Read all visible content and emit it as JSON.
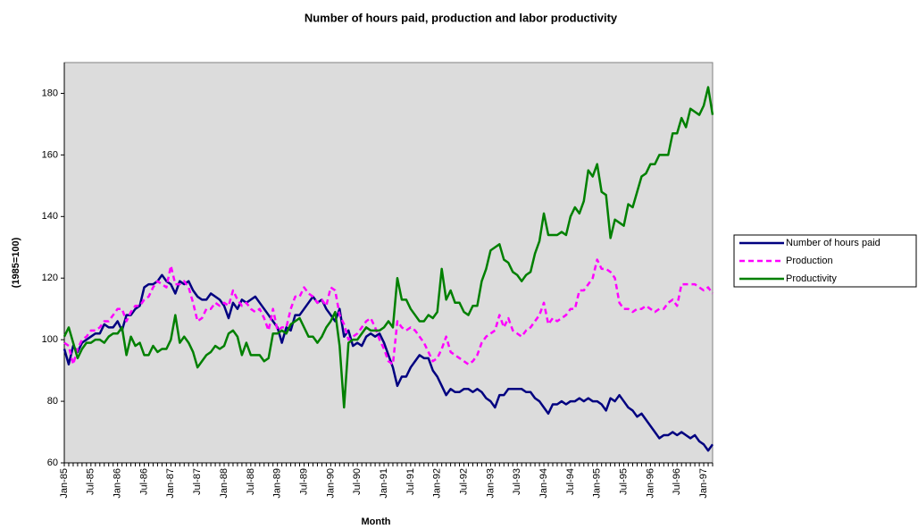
{
  "chart_data": {
    "type": "line",
    "title": "Number of hours paid, production and labor productivity",
    "x_label": "Month",
    "y_label": "(1985=100)",
    "categories": [
      "Jan-85",
      null,
      null,
      null,
      null,
      null,
      "Jul-85",
      null,
      null,
      null,
      null,
      null,
      "Jan-86",
      null,
      null,
      null,
      null,
      null,
      "Jul-86",
      null,
      null,
      null,
      null,
      null,
      "Jan-87",
      null,
      null,
      null,
      null,
      null,
      "Jul-87",
      null,
      null,
      null,
      null,
      null,
      "Jan-88",
      null,
      null,
      null,
      null,
      null,
      "Jul-88",
      null,
      null,
      null,
      null,
      null,
      "Jan-89",
      null,
      null,
      null,
      null,
      null,
      "Jul-89",
      null,
      null,
      null,
      null,
      null,
      "Jan-90",
      null,
      null,
      null,
      null,
      null,
      "Jul-90",
      null,
      null,
      null,
      null,
      null,
      "Jan-91",
      null,
      null,
      null,
      null,
      null,
      "Jul-91",
      null,
      null,
      null,
      null,
      null,
      "Jan-92",
      null,
      null,
      null,
      null,
      null,
      "Jul-92",
      null,
      null,
      null,
      null,
      null,
      "Jan-93",
      null,
      null,
      null,
      null,
      null,
      "Jul-93",
      null,
      null,
      null,
      null,
      null,
      "Jan-94",
      null,
      null,
      null,
      null,
      null,
      "Jul-94",
      null,
      null,
      null,
      null,
      null,
      "Jan-95",
      null,
      null,
      null,
      null,
      null,
      "Jul-95",
      null,
      null,
      null,
      null,
      null,
      "Jan-96",
      null,
      null,
      null,
      null,
      null,
      "Jul-96",
      null,
      null,
      null,
      null,
      null,
      "Jan-97",
      null,
      null
    ],
    "series": [
      {
        "name": "Number of hours paid",
        "color": "#000080",
        "dashed": false,
        "values": [
          97,
          92,
          98,
          96,
          99,
          100,
          101,
          102,
          102,
          105,
          104,
          104,
          106,
          103,
          108,
          108,
          110,
          111,
          117,
          118,
          118,
          119,
          121,
          119,
          118,
          115,
          119,
          118,
          119,
          116,
          114,
          113,
          113,
          115,
          114,
          113,
          111,
          107,
          112,
          110,
          113,
          112,
          113,
          114,
          112,
          110,
          108,
          106,
          104,
          99,
          104,
          103,
          108,
          108,
          110,
          112,
          114,
          112,
          113,
          110,
          108,
          106,
          110,
          101,
          103,
          98,
          99,
          98,
          101,
          102,
          101,
          102,
          99,
          95,
          91,
          85,
          88,
          88,
          91,
          93,
          95,
          94,
          94,
          90,
          88,
          85,
          82,
          84,
          83,
          83,
          84,
          84,
          83,
          84,
          83,
          81,
          80,
          78,
          82,
          82,
          84,
          84,
          84,
          84,
          83,
          83,
          81,
          80,
          78,
          76,
          79,
          79,
          80,
          79,
          80,
          80,
          81,
          80,
          81,
          80,
          80,
          79,
          77,
          81,
          80,
          82,
          80,
          78,
          77,
          75,
          76,
          74,
          72,
          70,
          68,
          69,
          69,
          70,
          69,
          70,
          69,
          68,
          69,
          67,
          66,
          64,
          66
        ]
      },
      {
        "name": "Production",
        "color": "#ff00ff",
        "dashed": true,
        "values": [
          99,
          98,
          92,
          97,
          100,
          101,
          103,
          103,
          104,
          106,
          106,
          108,
          110,
          110,
          106,
          109,
          111,
          111,
          113,
          114,
          117,
          119,
          118,
          117,
          124,
          118,
          118,
          119,
          117,
          112,
          106,
          107,
          110,
          110,
          112,
          111,
          112,
          111,
          116,
          113,
          111,
          112,
          110,
          109,
          110,
          107,
          103,
          110,
          103,
          104,
          104,
          110,
          114,
          114,
          117,
          115,
          114,
          112,
          113,
          111,
          117,
          116,
          108,
          105,
          100,
          101,
          102,
          104,
          106,
          107,
          104,
          100,
          97,
          93,
          92,
          106,
          104,
          103,
          104,
          103,
          101,
          99,
          96,
          93,
          94,
          97,
          101,
          96,
          95,
          94,
          93,
          92,
          93,
          95,
          99,
          101,
          102,
          103,
          108,
          104,
          107,
          103,
          102,
          101,
          103,
          104,
          106,
          108,
          112,
          105,
          107,
          106,
          107,
          108,
          110,
          110,
          116,
          116,
          118,
          120,
          126,
          123,
          123,
          122,
          120,
          112,
          110,
          110,
          109,
          110,
          110,
          111,
          110,
          109,
          110,
          110,
          112,
          113,
          111,
          118,
          118,
          118,
          118,
          117,
          116,
          117,
          115
        ]
      },
      {
        "name": "Productivity",
        "color": "#008000",
        "dashed": false,
        "values": [
          101,
          104,
          99,
          94,
          97,
          99,
          99,
          100,
          100,
          99,
          101,
          102,
          102,
          104,
          95,
          101,
          98,
          99,
          95,
          95,
          98,
          96,
          97,
          97,
          100,
          108,
          99,
          101,
          99,
          96,
          91,
          93,
          95,
          96,
          98,
          97,
          98,
          102,
          103,
          101,
          95,
          99,
          95,
          95,
          95,
          93,
          94,
          102,
          102,
          103,
          102,
          105,
          106,
          107,
          104,
          101,
          101,
          99,
          101,
          104,
          106,
          109,
          98,
          78,
          99,
          100,
          100,
          102,
          104,
          103,
          103,
          103,
          104,
          106,
          104,
          120,
          113,
          113,
          110,
          108,
          106,
          106,
          108,
          107,
          109,
          123,
          113,
          116,
          112,
          112,
          109,
          108,
          111,
          111,
          119,
          123,
          129,
          130,
          131,
          126,
          125,
          122,
          121,
          119,
          121,
          122,
          128,
          132,
          141,
          134,
          134,
          134,
          135,
          134,
          140,
          143,
          141,
          145,
          155,
          153,
          157,
          148,
          147,
          133,
          139,
          138,
          137,
          144,
          143,
          148,
          153,
          154,
          157,
          157,
          160,
          160,
          160,
          167,
          167,
          172,
          169,
          175,
          174,
          173,
          176,
          182,
          173
        ]
      }
    ],
    "ylim": [
      60,
      190
    ],
    "yticks": [
      60,
      80,
      100,
      120,
      140,
      160,
      180
    ],
    "grid": false,
    "legend": "right"
  }
}
